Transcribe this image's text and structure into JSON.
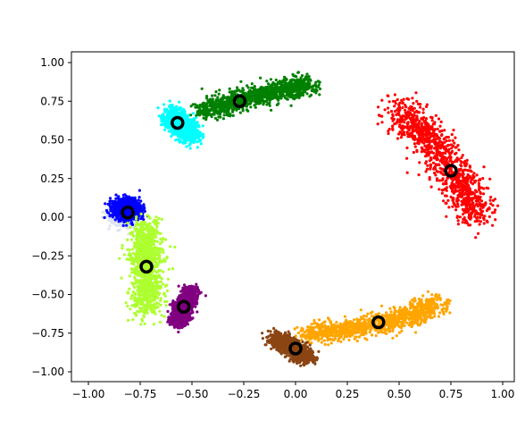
{
  "chart_data": {
    "type": "scatter",
    "title": "",
    "xlabel": "",
    "ylabel": "",
    "xlim": [
      -1.1,
      1.07
    ],
    "ylim": [
      -1.06,
      1.06
    ],
    "grid": false,
    "legend": "none",
    "x_ticks": [
      "−1.00",
      "−0.75",
      "−0.50",
      "−0.25",
      "0.00",
      "0.25",
      "0.50",
      "0.75",
      "1.00"
    ],
    "x_tick_values": [
      -1.0,
      -0.75,
      -0.5,
      -0.25,
      0.0,
      0.25,
      0.5,
      0.75,
      1.0
    ],
    "y_ticks": [
      "1.00",
      "0.75",
      "0.50",
      "0.25",
      "0.00",
      "−0.25",
      "−0.50",
      "−0.75",
      "−1.00"
    ],
    "y_tick_values": [
      1.0,
      0.75,
      0.5,
      0.25,
      0.0,
      -0.25,
      -0.5,
      -0.75,
      -1.0
    ],
    "clusters": [
      {
        "color": "#ff0000",
        "center": [
          0.75,
          0.3
        ],
        "path": [
          [
            0.5,
            0.7
          ],
          [
            0.65,
            0.5
          ],
          [
            0.78,
            0.25
          ],
          [
            0.88,
            0.0
          ]
        ],
        "spread": [
          0.09,
          0.09
        ]
      },
      {
        "color": "#008000",
        "center": [
          -0.27,
          0.75
        ],
        "path": [
          [
            -0.45,
            0.68
          ],
          [
            -0.27,
            0.76
          ],
          [
            -0.05,
            0.82
          ],
          [
            0.05,
            0.86
          ]
        ],
        "spread": [
          0.07,
          0.06
        ]
      },
      {
        "color": "#00ffff",
        "center": [
          -0.57,
          0.61
        ],
        "path": [
          [
            -0.6,
            0.66
          ],
          [
            -0.55,
            0.6
          ],
          [
            -0.5,
            0.52
          ]
        ],
        "spread": [
          0.05,
          0.06
        ]
      },
      {
        "color": "#0000ff",
        "center": [
          -0.81,
          0.03
        ],
        "path": [
          [
            -0.82,
            0.08
          ],
          [
            -0.81,
            0.02
          ]
        ],
        "spread": [
          0.06,
          0.05
        ]
      },
      {
        "color": "#adff2f",
        "center": [
          -0.72,
          -0.32
        ],
        "path": [
          [
            -0.72,
            -0.08
          ],
          [
            -0.72,
            -0.3
          ],
          [
            -0.72,
            -0.6
          ]
        ],
        "spread": [
          0.07,
          0.09
        ]
      },
      {
        "color": "#800080",
        "center": [
          -0.54,
          -0.58
        ],
        "path": [
          [
            -0.5,
            -0.47
          ],
          [
            -0.55,
            -0.6
          ],
          [
            -0.57,
            -0.68
          ]
        ],
        "spread": [
          0.04,
          0.04
        ]
      },
      {
        "color": "#ffa500",
        "center": [
          0.4,
          -0.68
        ],
        "path": [
          [
            0.05,
            -0.76
          ],
          [
            0.3,
            -0.72
          ],
          [
            0.55,
            -0.65
          ],
          [
            0.68,
            -0.55
          ]
        ],
        "spread": [
          0.07,
          0.06
        ]
      },
      {
        "color": "#8b4513",
        "center": [
          0.0,
          -0.85
        ],
        "path": [
          [
            -0.1,
            -0.78
          ],
          [
            0.0,
            -0.85
          ],
          [
            0.05,
            -0.92
          ]
        ],
        "spread": [
          0.05,
          0.04
        ]
      }
    ],
    "faint_cluster": {
      "color": "#dde3ee",
      "path": [
        [
          -0.88,
          0.02
        ],
        [
          -0.8,
          -0.05
        ]
      ],
      "spread": [
        0.05,
        0.04
      ]
    },
    "marker_style": {
      "fill": "none",
      "edge": "#000000"
    }
  }
}
